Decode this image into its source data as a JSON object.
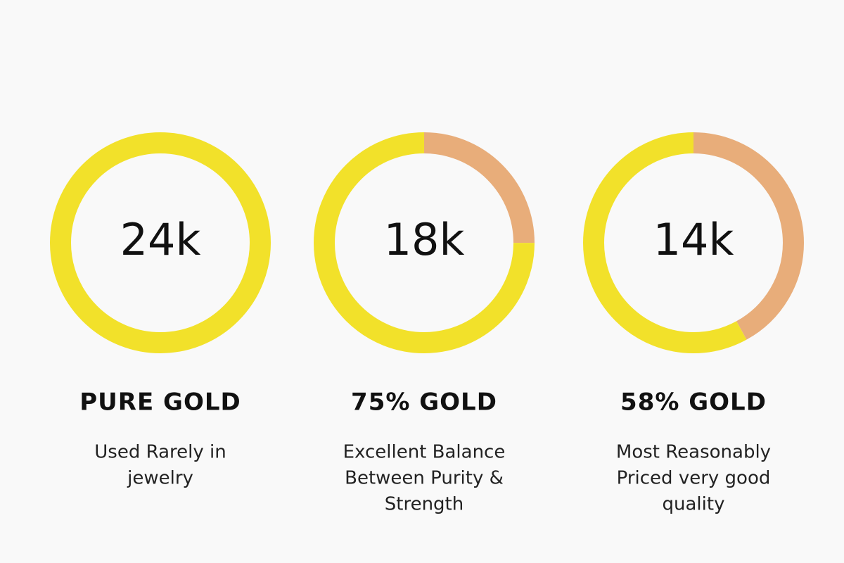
{
  "chart_data": [
    {
      "type": "donut",
      "title": "24k",
      "subtitle": "PURE GOLD",
      "annotation_lines": [
        "Used Rarely in",
        "jewelry"
      ],
      "values": [
        100,
        0
      ],
      "colors": [
        "#f2e12a",
        "#e8ad7a"
      ]
    },
    {
      "type": "donut",
      "title": "18k",
      "subtitle": "75% GOLD",
      "annotation_lines": [
        "Excellent Balance",
        "Between Purity &",
        "Strength"
      ],
      "values": [
        75,
        25
      ],
      "colors": [
        "#f2e12a",
        "#e8ad7a"
      ]
    },
    {
      "type": "donut",
      "title": "14k",
      "subtitle": "58% GOLD",
      "annotation_lines": [
        "Most Reasonably",
        "Priced very good",
        "quality"
      ],
      "values": [
        58,
        42
      ],
      "colors": [
        "#f2e12a",
        "#e8ad7a"
      ]
    }
  ]
}
